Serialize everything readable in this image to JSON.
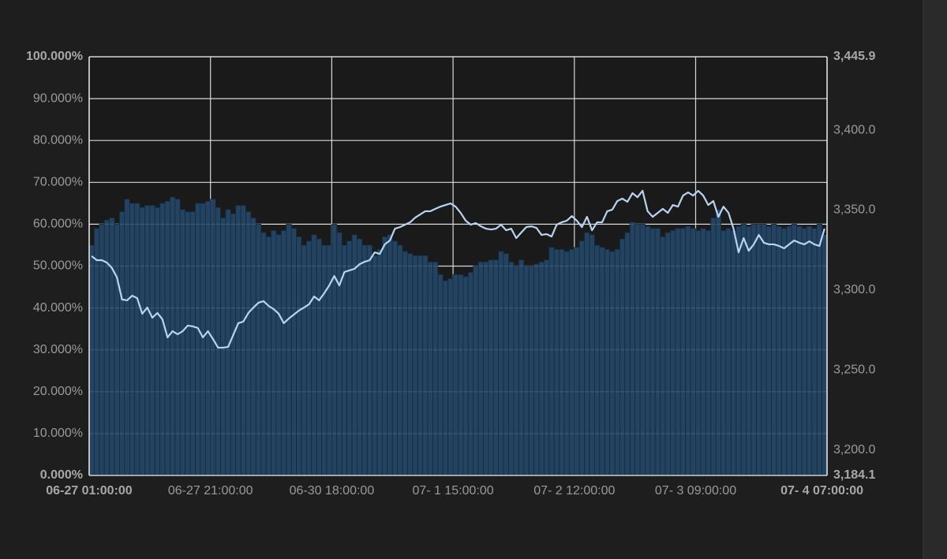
{
  "chart_data": {
    "type": "combo",
    "categories": [
      "06-27 01:00:00",
      null,
      null,
      null,
      null,
      null,
      null,
      null,
      null,
      null,
      null,
      null,
      null,
      null,
      null,
      null,
      null,
      null,
      null,
      null,
      null,
      null,
      null,
      null,
      "06-27 21:00:00",
      null,
      null,
      null,
      null,
      null,
      null,
      null,
      null,
      null,
      null,
      null,
      null,
      null,
      null,
      null,
      null,
      null,
      null,
      null,
      null,
      null,
      null,
      null,
      "06-30 18:00:00",
      null,
      null,
      null,
      null,
      null,
      null,
      null,
      null,
      null,
      null,
      null,
      null,
      null,
      null,
      null,
      null,
      null,
      null,
      null,
      null,
      null,
      null,
      null,
      "07- 1 15:00:00",
      null,
      null,
      null,
      null,
      null,
      null,
      null,
      null,
      null,
      null,
      null,
      null,
      null,
      null,
      null,
      null,
      null,
      null,
      null,
      null,
      null,
      null,
      null,
      "07- 2 12:00:00",
      null,
      null,
      null,
      null,
      null,
      null,
      null,
      null,
      null,
      null,
      null,
      null,
      null,
      null,
      null,
      null,
      null,
      null,
      null,
      null,
      null,
      null,
      null,
      "07- 3 09:00:00",
      null,
      null,
      null,
      null,
      null,
      null,
      null,
      null,
      null,
      null,
      null,
      null,
      null,
      null,
      null,
      null,
      null,
      null,
      null,
      null,
      null,
      null,
      null,
      null,
      "07- 4 07:00:00"
    ],
    "series": [
      {
        "type": "bar",
        "color": "#24496b",
        "values": [
          55,
          59,
          60,
          61,
          61.5,
          60,
          63,
          66,
          65,
          65,
          64,
          64.5,
          64.5,
          64,
          65,
          65.5,
          66.5,
          66,
          63.5,
          63,
          63,
          65,
          65,
          65.5,
          66,
          64,
          61.5,
          63.5,
          62.5,
          64.5,
          64.5,
          63,
          61.5,
          60,
          58,
          57,
          58.5,
          57.5,
          58.5,
          60,
          59,
          57,
          55,
          56,
          57.5,
          56.5,
          55,
          55,
          60,
          58,
          55,
          56,
          57.5,
          56.5,
          55,
          55,
          52.5,
          54,
          57,
          57.5,
          56,
          55,
          53.5,
          53,
          52.5,
          52.5,
          52.5,
          51,
          51,
          48,
          46.5,
          47,
          48,
          48,
          47.5,
          48.5,
          50,
          51,
          51,
          51.5,
          51.5,
          53.5,
          53,
          51,
          50,
          51.5,
          50,
          50,
          50.5,
          51,
          51.5,
          54.5,
          54,
          54,
          53.5,
          54,
          54.5,
          56,
          58,
          57.5,
          55,
          54.5,
          54,
          53.5,
          54,
          56.5,
          58,
          60.5,
          60,
          60,
          59.5,
          59,
          59,
          57,
          58,
          58.5,
          59,
          59,
          59.5,
          59,
          58.5,
          59,
          58.5,
          61.5,
          63.5,
          58.5,
          59,
          58.5,
          59.5,
          60,
          59.5,
          60,
          60,
          60,
          59.5,
          60,
          59.5,
          59,
          59.5,
          60,
          59.5,
          59,
          59.5,
          59,
          60,
          57.5
        ]
      },
      {
        "type": "line",
        "axis": "y2",
        "color": "#b9d3f2",
        "values": [
          3321.2,
          3318.7,
          3318.7,
          3317.2,
          3313.8,
          3307.9,
          3294.1,
          3293.6,
          3296.5,
          3295.0,
          3285.2,
          3289.1,
          3282.7,
          3285.7,
          3281.7,
          3270.4,
          3274.3,
          3272.4,
          3274.3,
          3277.8,
          3277.3,
          3276.3,
          3270.4,
          3274.3,
          3269.4,
          3264.0,
          3264.0,
          3264.5,
          3271.9,
          3279.3,
          3280.3,
          3285.7,
          3289.1,
          3292.1,
          3293.1,
          3290.1,
          3288.1,
          3285.2,
          3279.3,
          3282.2,
          3284.7,
          3287.2,
          3289.1,
          3291.1,
          3296.0,
          3293.6,
          3298.0,
          3302.9,
          3308.8,
          3302.9,
          3311.3,
          3312.3,
          3313.3,
          3316.2,
          3317.7,
          3318.7,
          3323.6,
          3322.6,
          3328.6,
          3331.0,
          3338.4,
          3339.4,
          3340.9,
          3342.4,
          3345.3,
          3347.3,
          3349.3,
          3349.3,
          3350.8,
          3352.2,
          3353.2,
          3354.2,
          3352.2,
          3348.3,
          3343.4,
          3340.9,
          3341.9,
          3339.9,
          3338.4,
          3337.9,
          3338.4,
          3340.9,
          3337.4,
          3338.4,
          3332.5,
          3336.0,
          3339.4,
          3339.9,
          3338.9,
          3334.5,
          3335.0,
          3333.5,
          3340.9,
          3342.4,
          3343.4,
          3346.3,
          3343.4,
          3339.4,
          3345.8,
          3337.4,
          3342.4,
          3342.4,
          3349.3,
          3350.3,
          3355.7,
          3357.2,
          3355.2,
          3360.6,
          3358.1,
          3362.1,
          3349.3,
          3345.8,
          3348.3,
          3350.8,
          3348.3,
          3353.2,
          3352.2,
          3359.1,
          3361.1,
          3359.1,
          3362.1,
          3359.1,
          3353.2,
          3355.7,
          3345.8,
          3352.2,
          3348.3,
          3338.4,
          3323.6,
          3332.5,
          3324.6,
          3328.6,
          3334.5,
          3329.6,
          3328.6,
          3328.6,
          3327.6,
          3326.1,
          3328.6,
          3331.0,
          3329.6,
          3328.6,
          3330.5,
          3328.6,
          3327.6,
          3338.4
        ]
      }
    ],
    "ylim": [
      0,
      100
    ],
    "yticks": [
      {
        "value": 0,
        "label": "0.000%"
      },
      {
        "value": 10,
        "label": "10.000%"
      },
      {
        "value": 20,
        "label": "20.000%"
      },
      {
        "value": 30,
        "label": "30.000%"
      },
      {
        "value": 40,
        "label": "40.000%"
      },
      {
        "value": 50,
        "label": "50.000%"
      },
      {
        "value": 60,
        "label": "60.000%"
      },
      {
        "value": 70,
        "label": "70.000%"
      },
      {
        "value": 80,
        "label": "80.000%"
      },
      {
        "value": 90,
        "label": "90.000%"
      },
      {
        "value": 100,
        "label": "100.000%"
      }
    ],
    "y2lim": [
      3184.1,
      3445.9
    ],
    "y2ticks": [
      {
        "value": 3184.1,
        "label": "3,184.1"
      },
      {
        "value": 3200,
        "label": "3,200.0"
      },
      {
        "value": 3250,
        "label": "3,250.0"
      },
      {
        "value": 3300,
        "label": "3,300.0"
      },
      {
        "value": 3350,
        "label": "3,350.0"
      },
      {
        "value": 3400,
        "label": "3,400.0"
      },
      {
        "value": 3445.9,
        "label": "3,445.9"
      }
    ],
    "grid": true
  }
}
